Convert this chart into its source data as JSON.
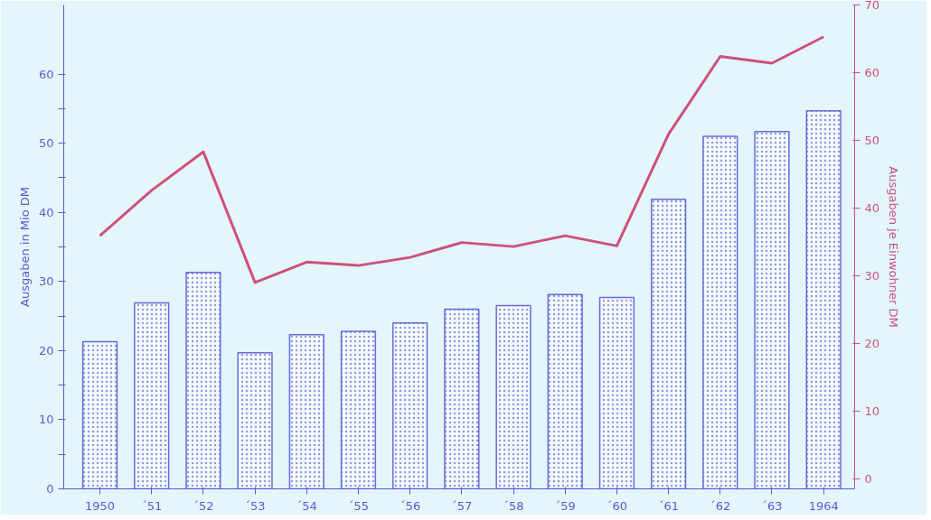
{
  "chart_data": {
    "type": "bar",
    "ylabel": "Ausgaben in Mio DM",
    "y2label": "Ausgaben je Einwohner DM",
    "categories": [
      "1950",
      "´51",
      "´52",
      "´53",
      "´54",
      "´55",
      "´56",
      "´57",
      "´58",
      "´59",
      "´60",
      "´61",
      "´62",
      "´63",
      "1964"
    ],
    "series": [
      {
        "color": "#6a6ad8",
        "values": [
          21.3,
          26.9,
          31.3,
          19.7,
          22.3,
          22.8,
          24.0,
          26.0,
          26.5,
          28.1,
          27.7,
          41.9,
          51.0,
          51.7,
          54.7
        ]
      },
      {
        "type": "line",
        "axis": "y2",
        "color": "#d0507a",
        "values": [
          35.9,
          42.6,
          48.3,
          29.0,
          32.0,
          31.5,
          32.7,
          34.9,
          34.3,
          35.9,
          34.4,
          50.9,
          62.4,
          61.4,
          65.3
        ]
      }
    ],
    "ylim": [
      0,
      70
    ],
    "yticks": [
      0,
      {
        "value": 5,
        "label": null
      },
      10,
      {
        "value": 15,
        "label": null
      },
      20,
      {
        "value": 25,
        "label": null
      },
      30,
      {
        "value": 35,
        "label": null
      },
      40,
      {
        "value": 45,
        "label": null
      },
      50,
      {
        "value": 55,
        "label": null
      },
      60
    ],
    "y2lim": [
      -1.5,
      70
    ],
    "y2ticks": [
      0,
      10,
      20,
      30,
      40,
      50,
      60,
      70
    ]
  }
}
